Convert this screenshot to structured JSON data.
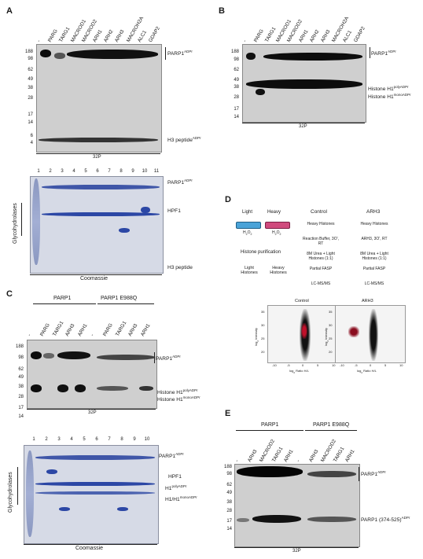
{
  "panels": {
    "A": {
      "letter": "A",
      "lanes": [
        "-",
        "PARG",
        "TARG1",
        "MACROD1",
        "MACROD2",
        "ARH1",
        "ARH2",
        "ARH3",
        "MACROH2A",
        "ALC1",
        "GDAP2"
      ],
      "mw": [
        "188",
        "98",
        "62",
        "49",
        "38",
        "28",
        "17",
        "14",
        "6",
        "4"
      ],
      "label_parp1": "PARP1",
      "label_parp1_sup": "ADPr",
      "label_h3": "H3 peptide",
      "label_h3_sup": "ADPr",
      "autorad": "32P",
      "gel_numbers": [
        "1",
        "2",
        "3",
        "4",
        "5",
        "6",
        "7",
        "8",
        "9",
        "10",
        "11"
      ],
      "gel_side": "Glycohydrolases",
      "gel_label_parp1": "PARP1",
      "gel_label_parp1_sup": "ADPr",
      "gel_label_hpf1": "HPF1",
      "gel_label_h3": "H3 peptide",
      "gel_caption": "Coomassie"
    },
    "B": {
      "letter": "B",
      "lanes": [
        "-",
        "PARG",
        "TARG1",
        "MACROD1",
        "MACROD2",
        "ARH1",
        "ARH2",
        "ARH3",
        "MACROH2A",
        "ALC1",
        "GDAP2"
      ],
      "mw": [
        "188",
        "98",
        "62",
        "49",
        "38",
        "28",
        "17",
        "14"
      ],
      "label_parp1": "PARP1",
      "label_parp1_sup": "ADPr",
      "label_poly": "Histone H1",
      "label_poly_sup": "polyADPr",
      "label_mono": "Histone H1",
      "label_mono_sup": "monoADPr",
      "autorad": "32P"
    },
    "C": {
      "letter": "C",
      "group1": "PARP1",
      "group2": "PARP1 E988Q",
      "lanes": [
        "-",
        "PARG",
        "TARG1",
        "ARH3",
        "ARH1",
        "-",
        "PARG",
        "TARG1",
        "ARH3",
        "ARH1"
      ],
      "mw": [
        "188",
        "98",
        "62",
        "49",
        "38",
        "28",
        "17",
        "14"
      ],
      "label_parp1": "PARP1",
      "label_parp1_sup": "ADPr",
      "label_poly": "Histone H1",
      "label_poly_sup": "polyADPr",
      "label_mono": "Histone H1",
      "label_mono_sup": "monoADPr",
      "autorad": "32P",
      "gel_numbers": [
        "1",
        "2",
        "3",
        "4",
        "5",
        "6",
        "7",
        "8",
        "9",
        "10"
      ],
      "gel_side": "Glycohydrolases",
      "gel_label_parp1": "PARP1",
      "gel_label_parp1_sup": "ADPr",
      "gel_label_hpf1": "HPF1",
      "gel_label_h1poly": "H1",
      "gel_label_h1poly_sup": "polyADPr",
      "gel_label_h1": "H1/H1",
      "gel_label_h1_sup": "monoADPr",
      "gel_caption": "Coomassie"
    },
    "D": {
      "letter": "D",
      "light": "Light",
      "heavy": "Heavy",
      "h2o2": "H",
      "purification": "Histone purification",
      "light_hist": "Light Histones",
      "heavy_hist": "Heavy Histones",
      "col1_title": "Control",
      "col2_title": "ARH3",
      "col1_steps": [
        "Heavy Histones",
        "Reaction Buffer, 3O', RT",
        "8M Urea + Light Histones (1:1)",
        "Partial FASP",
        "LC-MS/MS"
      ],
      "col2_steps": [
        "Heavy Histones",
        "ARH3, 3O', RT",
        "8M Urea + Light Histones (1:1)",
        "Partial FASP",
        "LC-MS/MS"
      ],
      "plot1_title": "Control",
      "plot2_title": "ARH3",
      "ylabel": "log",
      "ylabel_sub": "2",
      "ylabel_rest": " Intensity",
      "xlabel": "log",
      "xlabel_sub": "2",
      "xlabel_rest": " Ratio H/L",
      "yticks": [
        "35",
        "30",
        "25",
        "20"
      ],
      "xticks": [
        "-10",
        "-5",
        "0",
        "5",
        "10"
      ]
    },
    "E": {
      "letter": "E",
      "group1": "PARP1",
      "group2": "PARP1 E988Q",
      "lanes": [
        "-",
        "ARH3",
        "MACROD2",
        "TARG1",
        "ARH1",
        "-",
        "ARH3",
        "MACROD2",
        "TARG1",
        "ARH1"
      ],
      "mw": [
        "188",
        "98",
        "62",
        "49",
        "38",
        "28",
        "17",
        "14"
      ],
      "label_parp1": "PARP1",
      "label_parp1_sup": "ADPr",
      "label_frag": "PARP1 (374-525)",
      "label_frag_sup": "ADPr",
      "autorad": "32P"
    }
  }
}
